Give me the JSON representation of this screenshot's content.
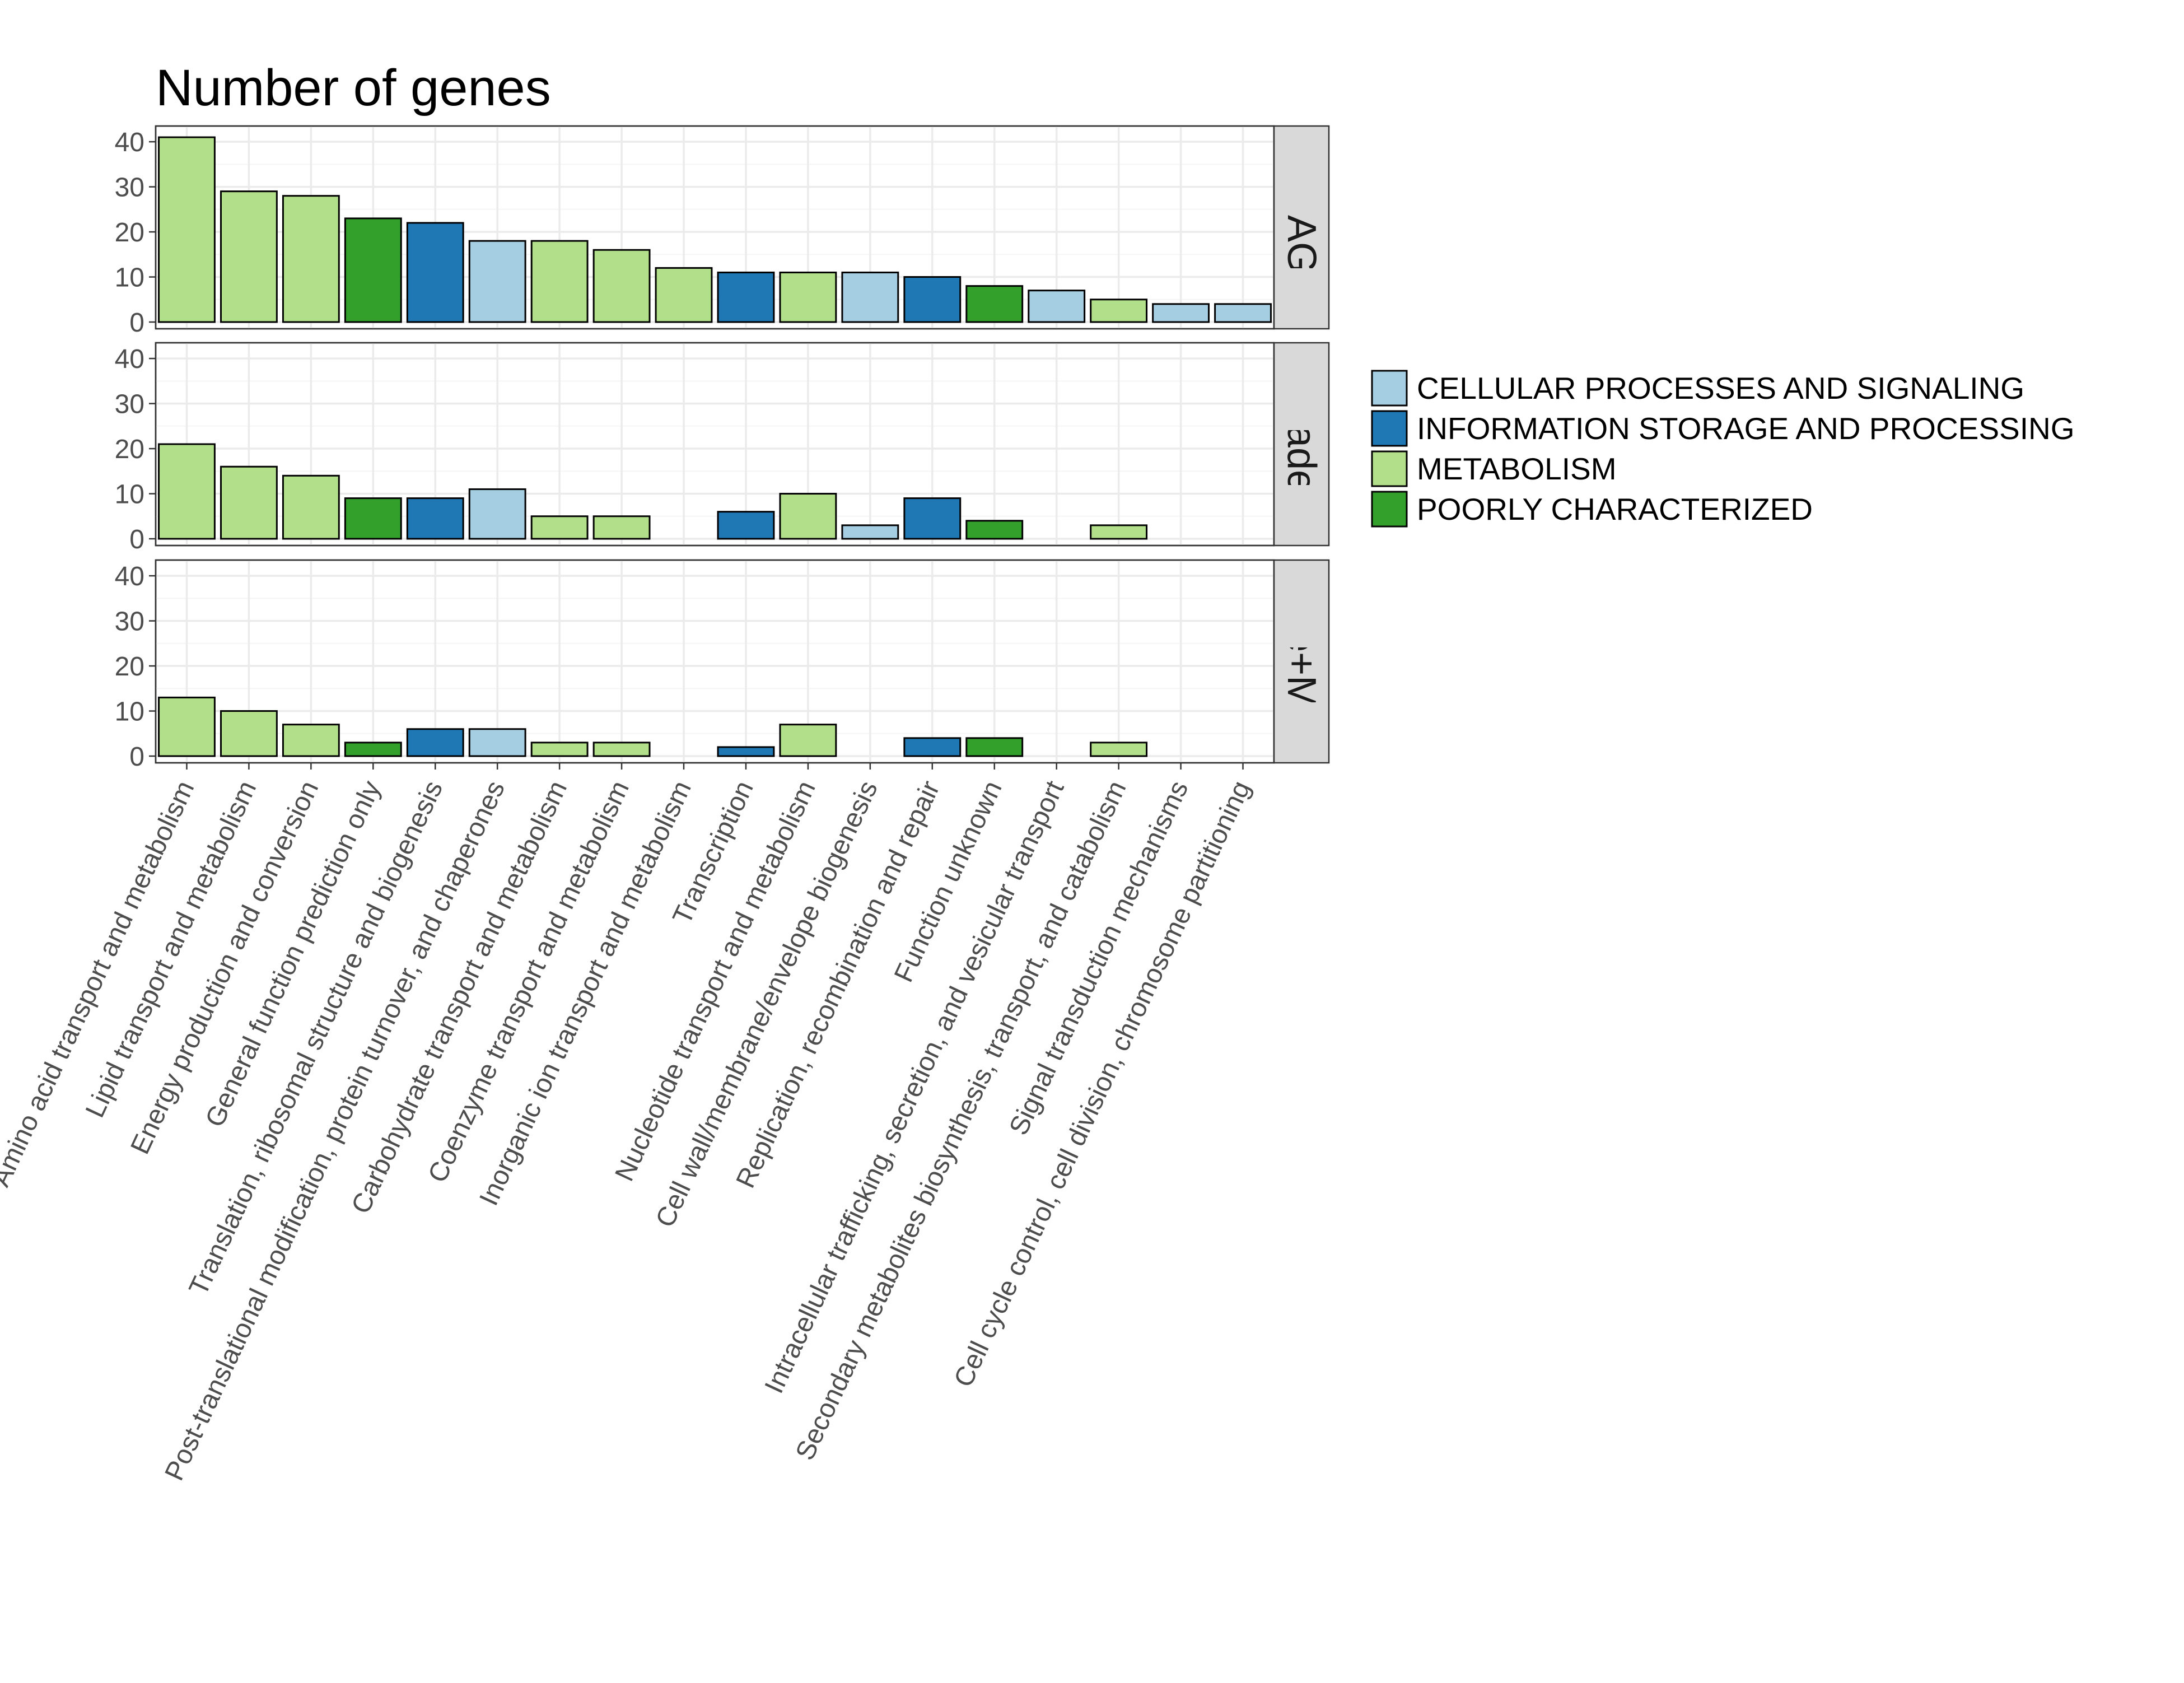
{
  "chart_data": {
    "type": "bar",
    "title": "Number of genes",
    "xlabel": "",
    "ylabel": "",
    "ylim": [
      0,
      42
    ],
    "yticks": [
      0,
      10,
      20,
      30,
      40
    ],
    "grid": true,
    "legend_position": "right",
    "categories": [
      "Amino acid transport and metabolism",
      "Lipid transport and metabolism",
      "Energy production and conversion",
      "General function prediction only",
      "Translation, ribosomal structure and biogenesis",
      "Post-translational modification, protein turnover, and chaperones",
      "Carbohydrate transport and metabolism",
      "Coenzyme transport and metabolism",
      "Inorganic ion transport and metabolism",
      "Transcription",
      "Nucleotide transport and metabolism",
      "Cell wall/membrane/envelope biogenesis",
      "Replication, recombination and repair",
      "Function unknown",
      "Intracellular trafficking, secretion, and vesicular transport",
      "Secondary metabolites biosynthesis, transport, and catabolism",
      "Signal transduction mechanisms",
      "Cell cycle control, cell division, chromosome partitioning"
    ],
    "category_group": [
      "METABOLISM",
      "METABOLISM",
      "METABOLISM",
      "POORLY CHARACTERIZED",
      "INFORMATION STORAGE AND PROCESSING",
      "CELLULAR PROCESSES AND SIGNALING",
      "METABOLISM",
      "METABOLISM",
      "METABOLISM",
      "INFORMATION STORAGE AND PROCESSING",
      "METABOLISM",
      "CELLULAR PROCESSES AND SIGNALING",
      "INFORMATION STORAGE AND PROCESSING",
      "POORLY CHARACTERIZED",
      "CELLULAR PROCESSES AND SIGNALING",
      "METABOLISM",
      "CELLULAR PROCESSES AND SIGNALING",
      "CELLULAR PROCESSES AND SIGNALING"
    ],
    "facets": [
      {
        "name": "MAG",
        "values": [
          41,
          29,
          28,
          23,
          22,
          18,
          18,
          16,
          12,
          11,
          11,
          11,
          10,
          8,
          7,
          5,
          4,
          4
        ]
      },
      {
        "name": "clade",
        "values": [
          21,
          16,
          14,
          9,
          9,
          11,
          5,
          5,
          0,
          6,
          10,
          3,
          9,
          4,
          0,
          3,
          0,
          0
        ]
      },
      {
        "name": "clade+MAG",
        "values": [
          13,
          10,
          7,
          3,
          6,
          6,
          3,
          3,
          0,
          2,
          7,
          0,
          4,
          4,
          0,
          3,
          0,
          0
        ]
      }
    ],
    "legend": [
      {
        "name": "CELLULAR PROCESSES AND SIGNALING",
        "color": "#a6cee3"
      },
      {
        "name": "INFORMATION STORAGE AND PROCESSING",
        "color": "#1f78b4"
      },
      {
        "name": "METABOLISM",
        "color": "#b2df8a"
      },
      {
        "name": "POORLY CHARACTERIZED",
        "color": "#33a02c"
      }
    ]
  }
}
